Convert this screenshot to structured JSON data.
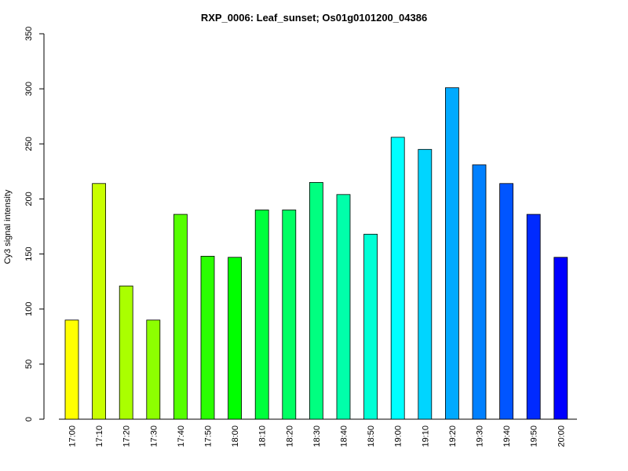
{
  "chart_data": {
    "type": "bar",
    "title": "RXP_0006: Leaf_sunset; Os01g0101200_04386",
    "xlabel": "",
    "ylabel": "Cy3 signal intensity",
    "ylim": [
      0,
      350
    ],
    "y_ticks": [
      0,
      50,
      100,
      150,
      200,
      250,
      300,
      350
    ],
    "grid": false,
    "legend": "none",
    "categories": [
      "17:00",
      "17:10",
      "17:20",
      "17:30",
      "17:40",
      "17:50",
      "18:00",
      "18:10",
      "18:20",
      "18:30",
      "18:40",
      "18:50",
      "19:00",
      "19:10",
      "19:20",
      "19:30",
      "19:40",
      "19:50",
      "20:00"
    ],
    "values": [
      90,
      214,
      121,
      90,
      186,
      148,
      147,
      190,
      190,
      215,
      204,
      168,
      256,
      245,
      301,
      231,
      214,
      186,
      147
    ],
    "colors": [
      "#FFFF00",
      "#C8FF00",
      "#AAFF00",
      "#8DFF00",
      "#55FF00",
      "#2AFF00",
      "#00FF00",
      "#00FF3C",
      "#00FF63",
      "#00FF80",
      "#00FFAA",
      "#00FFD5",
      "#00FFFF",
      "#00D5FF",
      "#00AAFF",
      "#0080FF",
      "#0055FF",
      "#002AFF",
      "#0000FF"
    ]
  }
}
